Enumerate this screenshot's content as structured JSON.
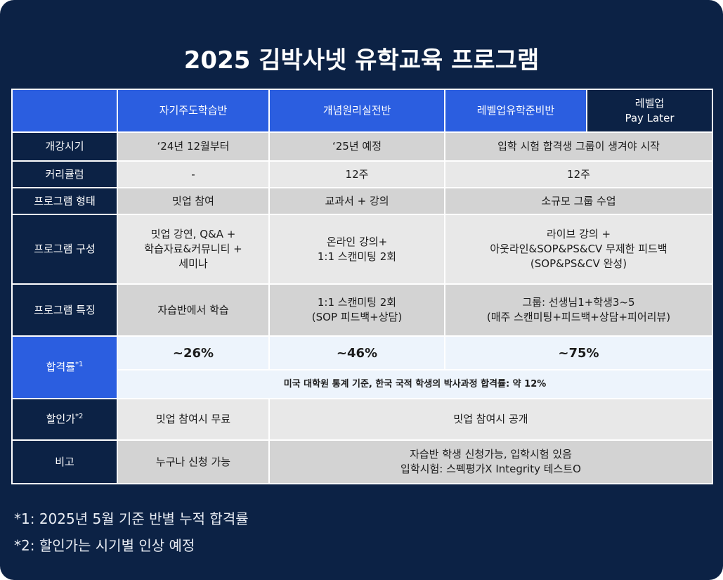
{
  "title": "2025 김박사넷 유학교육 프로그램",
  "columns": {
    "self": "자기주도학습반",
    "concept": "개념원리실전반",
    "levelup": "레벨업유학준비반",
    "paylater_line1": "레벨업",
    "paylater_line2": "Pay Later"
  },
  "rows": {
    "start": {
      "label": "개강시기",
      "self": "‘24년 12월부터",
      "concept": "‘25년 예정",
      "levelup": "입학 시험 합격생 그룹이 생겨야 시작"
    },
    "curriculum": {
      "label": "커리큘럼",
      "self": "-",
      "concept": "12주",
      "levelup": "12주"
    },
    "format": {
      "label": "프로그램 형태",
      "self": "밋업 참여",
      "concept": "교과서 + 강의",
      "levelup": "소규모 그룹 수업"
    },
    "composition": {
      "label": "프로그램 구성",
      "self": [
        "밋업 강연, Q&A +",
        "학습자료&커뮤니티 +",
        "세미나"
      ],
      "concept": [
        "온라인 강의+",
        "1:1 스캔미팅 2회"
      ],
      "levelup": [
        "라이브 강의 +",
        "아웃라인&SOP&PS&CV 무제한 피드백",
        "(SOP&PS&CV 완성)"
      ]
    },
    "feature": {
      "label": "프로그램 특징",
      "self": "자습반에서 학습",
      "concept": [
        "1:1 스캔미팅 2회",
        "(SOP 피드백+상담)"
      ],
      "levelup": [
        "그룹: 선생님1+학생3~5",
        "(매주 스캔미팅+피드백+상담+피어리뷰)"
      ]
    },
    "passrate": {
      "label": "합격률",
      "mark": "*1",
      "self": "~26%",
      "concept": "~46%",
      "levelup": "~75%",
      "note": "미국 대학원 통계 기준, 한국 국적 학생의 박사과정 합격률: 약 12%"
    },
    "discount": {
      "label": "할인가",
      "mark": "*2",
      "self": "밋업 참여시 무료",
      "rest": "밋업 참여시 공개"
    },
    "remarks": {
      "label": "비고",
      "self": "누구나 신청 가능",
      "rest": [
        "자습반 학생 신청가능, 입학시험 있음",
        "입학시험: 스펙평가X Integrity  테스트O"
      ]
    }
  },
  "footnotes": {
    "one": "*1: 2025년 5월 기준 반별 누적 합격률",
    "two": "*2: 할인가는 시기별 인상 예정"
  },
  "colors": {
    "navy": "#0c2245",
    "blue": "#2b5ee0",
    "gray_dark": "#d3d3d3",
    "gray_light": "#e8e8e8",
    "pale_blue": "#edf4fc"
  }
}
